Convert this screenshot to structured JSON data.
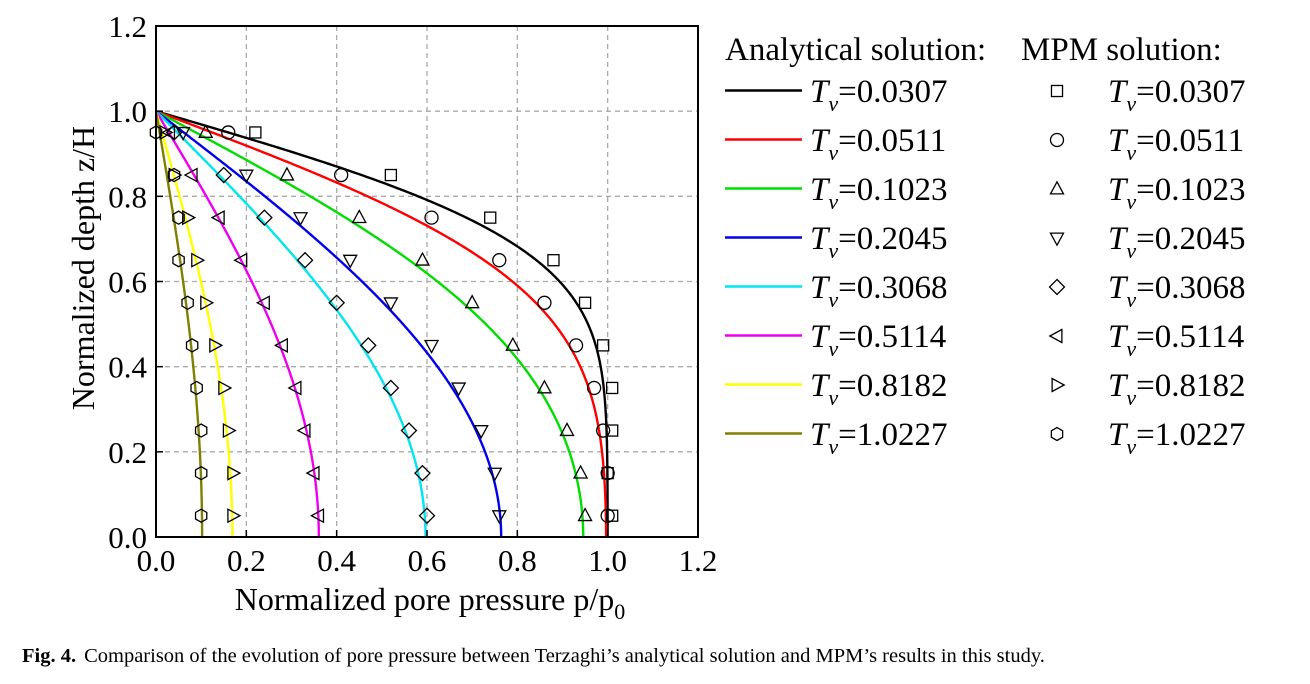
{
  "chart_data": {
    "type": "line",
    "title": "",
    "xlabel": "Normalized pore pressure p/p",
    "xlabel_sub": "0",
    "ylabel": "Normalized depth z/H",
    "xlim": [
      0,
      1.2
    ],
    "ylim": [
      0,
      1.2
    ],
    "xticks": [
      "0.0",
      "0.2",
      "0.4",
      "0.6",
      "0.8",
      "1.0",
      "1.2"
    ],
    "yticks": [
      "0.0",
      "0.2",
      "0.4",
      "0.6",
      "0.8",
      "1.0",
      "1.2"
    ],
    "grid": true,
    "legend_position": "right, outside plot",
    "legend_headers": {
      "analytical": "Analytical solution:",
      "mpm": "MPM solution:"
    },
    "legend_symbol": "T",
    "legend_symbol_sub": "v",
    "series": [
      {
        "name": "T_v=0.0307",
        "label_value": "=0.0307",
        "Tv": 0.0307,
        "color": "#000000",
        "marker": "square",
        "mpm_points": [
          [
            0.22,
            0.95
          ],
          [
            0.52,
            0.85
          ],
          [
            0.74,
            0.75
          ],
          [
            0.88,
            0.65
          ],
          [
            0.95,
            0.55
          ],
          [
            0.99,
            0.45
          ],
          [
            1.01,
            0.35
          ],
          [
            1.01,
            0.25
          ],
          [
            1.0,
            0.15
          ],
          [
            1.01,
            0.05
          ]
        ]
      },
      {
        "name": "T_v=0.0511",
        "label_value": "=0.0511",
        "Tv": 0.0511,
        "color": "#ff0000",
        "marker": "circle",
        "mpm_points": [
          [
            0.16,
            0.95
          ],
          [
            0.41,
            0.85
          ],
          [
            0.61,
            0.75
          ],
          [
            0.76,
            0.65
          ],
          [
            0.86,
            0.55
          ],
          [
            0.93,
            0.45
          ],
          [
            0.97,
            0.35
          ],
          [
            0.99,
            0.25
          ],
          [
            1.0,
            0.15
          ],
          [
            1.0,
            0.05
          ]
        ]
      },
      {
        "name": "T_v=0.1023",
        "label_value": "=0.1023",
        "Tv": 0.1023,
        "color": "#00dd00",
        "marker": "triangle-up",
        "mpm_points": [
          [
            0.11,
            0.95
          ],
          [
            0.29,
            0.85
          ],
          [
            0.45,
            0.75
          ],
          [
            0.59,
            0.65
          ],
          [
            0.7,
            0.55
          ],
          [
            0.79,
            0.45
          ],
          [
            0.86,
            0.35
          ],
          [
            0.91,
            0.25
          ],
          [
            0.94,
            0.15
          ],
          [
            0.95,
            0.05
          ]
        ]
      },
      {
        "name": "T_v=0.2045",
        "label_value": "=0.2045",
        "Tv": 0.2045,
        "color": "#0000ee",
        "marker": "triangle-down",
        "mpm_points": [
          [
            0.06,
            0.95
          ],
          [
            0.2,
            0.85
          ],
          [
            0.32,
            0.75
          ],
          [
            0.43,
            0.65
          ],
          [
            0.52,
            0.55
          ],
          [
            0.61,
            0.45
          ],
          [
            0.67,
            0.35
          ],
          [
            0.72,
            0.25
          ],
          [
            0.75,
            0.15
          ],
          [
            0.76,
            0.05
          ]
        ]
      },
      {
        "name": "T_v=0.3068",
        "label_value": "=0.3068",
        "Tv": 0.3068,
        "color": "#00e5ee",
        "marker": "diamond",
        "mpm_points": [
          [
            0.04,
            0.95
          ],
          [
            0.15,
            0.85
          ],
          [
            0.24,
            0.75
          ],
          [
            0.33,
            0.65
          ],
          [
            0.4,
            0.55
          ],
          [
            0.47,
            0.45
          ],
          [
            0.52,
            0.35
          ],
          [
            0.56,
            0.25
          ],
          [
            0.59,
            0.15
          ],
          [
            0.6,
            0.05
          ]
        ]
      },
      {
        "name": "T_v=0.5114",
        "label_value": "=0.5114",
        "Tv": 0.5114,
        "color": "#ee00ee",
        "marker": "triangle-left",
        "mpm_points": [
          [
            0.03,
            0.95
          ],
          [
            0.08,
            0.85
          ],
          [
            0.14,
            0.75
          ],
          [
            0.19,
            0.65
          ],
          [
            0.24,
            0.55
          ],
          [
            0.28,
            0.45
          ],
          [
            0.31,
            0.35
          ],
          [
            0.33,
            0.25
          ],
          [
            0.35,
            0.15
          ],
          [
            0.36,
            0.05
          ]
        ]
      },
      {
        "name": "T_v=0.8182",
        "label_value": "=0.8182",
        "Tv": 0.8182,
        "color": "#ffff00",
        "marker": "triangle-right",
        "mpm_points": [
          [
            0.02,
            0.95
          ],
          [
            0.04,
            0.85
          ],
          [
            0.07,
            0.75
          ],
          [
            0.09,
            0.65
          ],
          [
            0.11,
            0.55
          ],
          [
            0.13,
            0.45
          ],
          [
            0.15,
            0.35
          ],
          [
            0.16,
            0.25
          ],
          [
            0.17,
            0.15
          ],
          [
            0.17,
            0.05
          ]
        ]
      },
      {
        "name": "T_v=1.0227",
        "label_value": "=1.0227",
        "Tv": 1.0227,
        "color": "#808000",
        "marker": "hexagon",
        "mpm_points": [
          [
            0.0,
            0.95
          ],
          [
            0.04,
            0.85
          ],
          [
            0.05,
            0.75
          ],
          [
            0.05,
            0.65
          ],
          [
            0.07,
            0.55
          ],
          [
            0.08,
            0.45
          ],
          [
            0.09,
            0.35
          ],
          [
            0.1,
            0.25
          ],
          [
            0.1,
            0.15
          ],
          [
            0.1,
            0.05
          ]
        ]
      }
    ]
  },
  "caption": {
    "label": "Fig. 4.",
    "text": "Comparison of the evolution of pore pressure between Terzaghi’s analytical solution and MPM’s results in this study."
  }
}
